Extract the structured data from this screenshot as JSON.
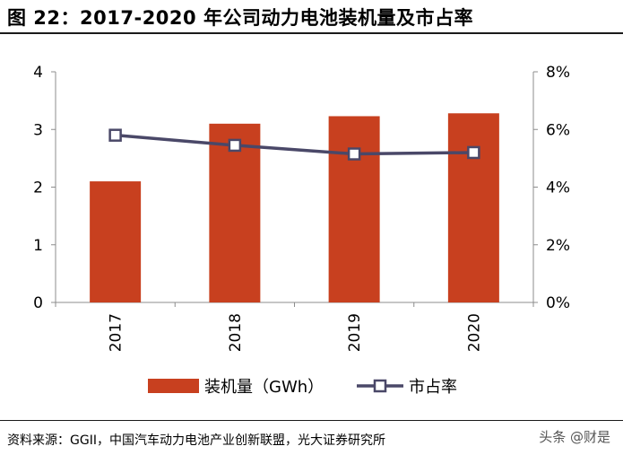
{
  "figure": {
    "title": "图 22：2017-2020 年公司动力电池装机量及市占率",
    "source": "资料来源：GGII，中国汽车动力电池产业创新联盟，光大证券研究所",
    "watermark": "头条 @财是"
  },
  "chart_data": {
    "type": "bar",
    "categories": [
      "2017",
      "2018",
      "2019",
      "2020"
    ],
    "series": [
      {
        "name": "装机量（GWh）",
        "type": "bar",
        "axis": "left",
        "color": "#c8401f",
        "values": [
          2.1,
          3.1,
          3.23,
          3.28
        ]
      },
      {
        "name": "市占率",
        "type": "line",
        "axis": "right",
        "color": "#4a4868",
        "values": [
          5.8,
          5.45,
          5.15,
          5.2
        ]
      }
    ],
    "y_left": {
      "min": 0,
      "max": 4,
      "ticks": [
        0,
        1,
        2,
        3,
        4
      ]
    },
    "y_right": {
      "min": 0,
      "max": 8,
      "ticks": [
        0,
        2,
        4,
        6,
        8
      ],
      "tick_labels": [
        "0%",
        "2%",
        "4%",
        "6%",
        "8%"
      ]
    },
    "legend": {
      "placement": "bottom"
    },
    "grid": false
  }
}
